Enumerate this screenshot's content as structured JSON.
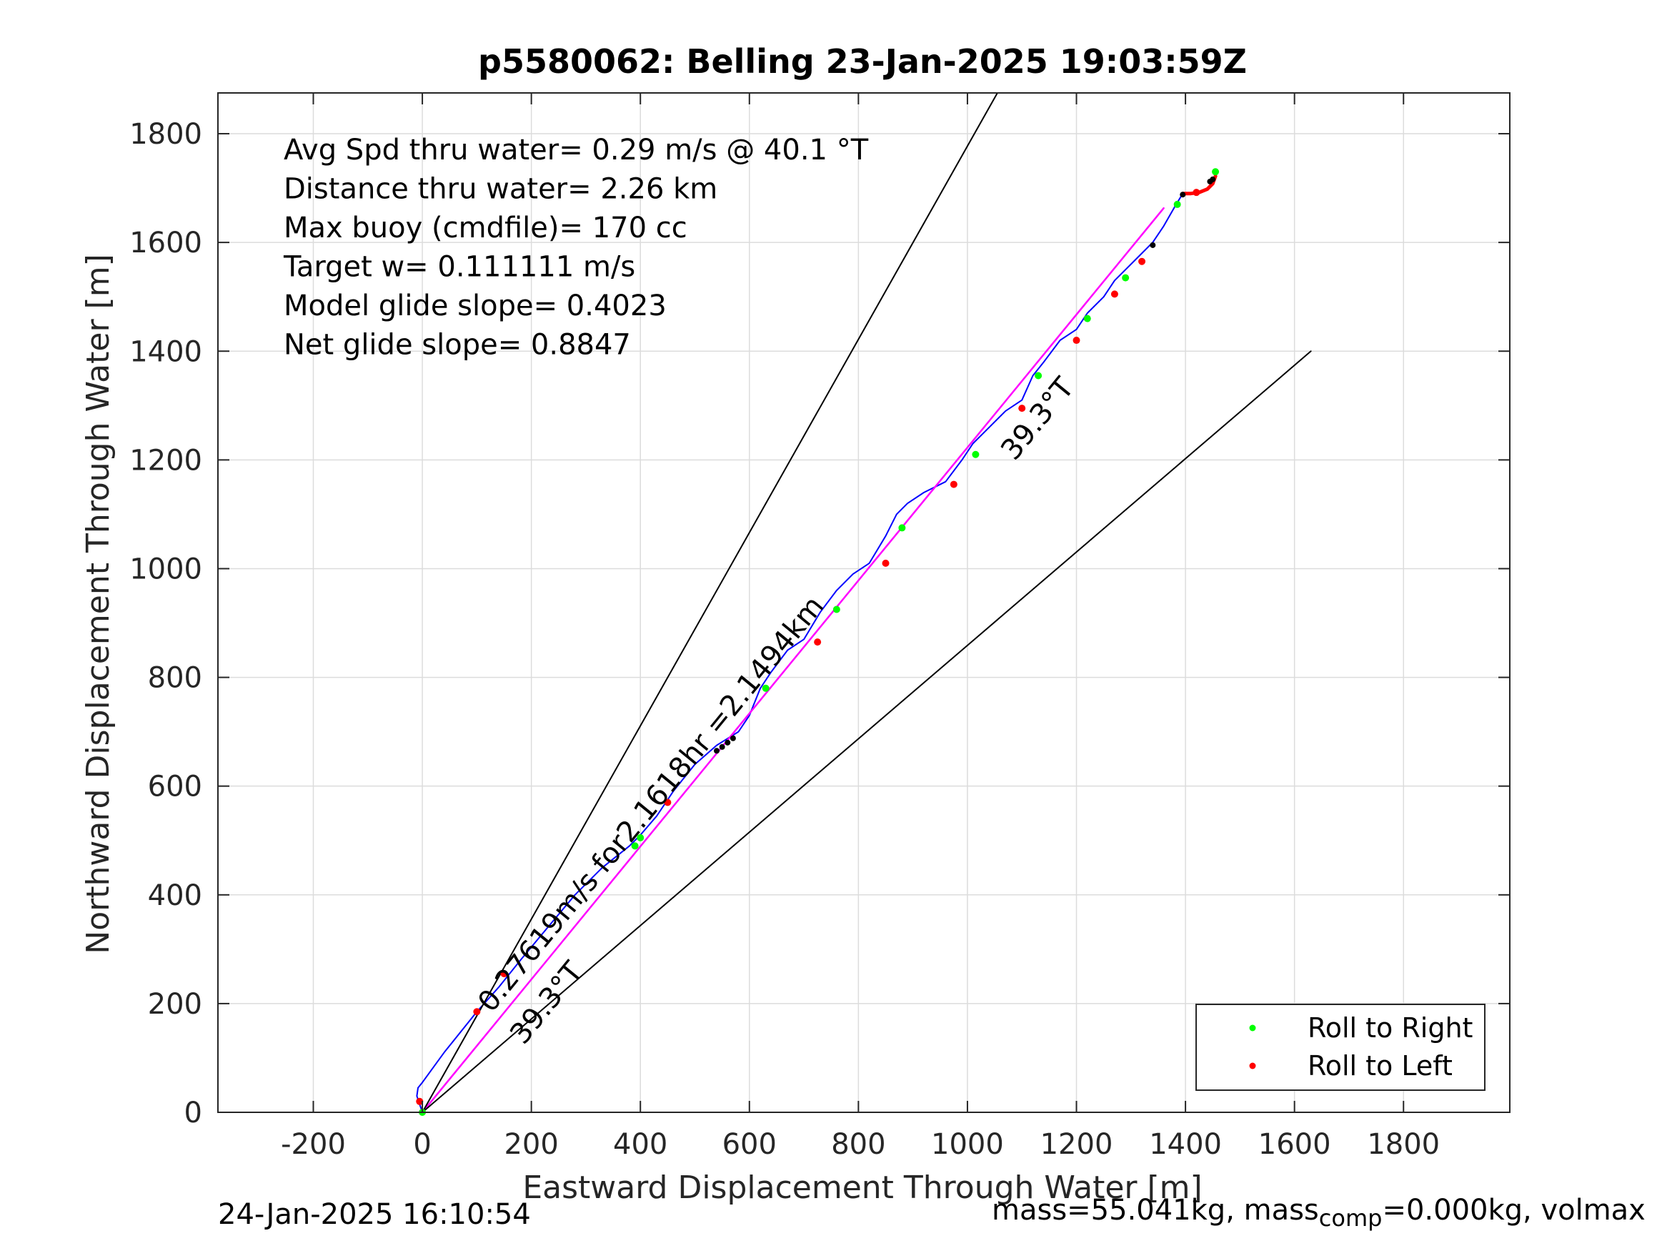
{
  "chart_data": {
    "type": "line",
    "title": "p5580062: Belling 23-Jan-2025 19:03:59Z",
    "xlabel": "Eastward Displacement Through Water [m]",
    "ylabel": "Northward Displacement Through Water [m]",
    "xlim": [
      -375,
      1995
    ],
    "ylim": [
      0,
      1875
    ],
    "xticks": [
      -200,
      0,
      200,
      400,
      600,
      800,
      1000,
      1200,
      1400,
      1600,
      1800
    ],
    "yticks": [
      0,
      200,
      400,
      600,
      800,
      1000,
      1200,
      1400,
      1600,
      1800
    ],
    "grid": true,
    "legend_position": "bottom-right",
    "annotations": [
      "Avg Spd thru water=  0.29 m/s @  40.1 °T",
      "Distance thru water=  2.26 km",
      "Max buoy (cmdfile)= 170 cc",
      "Target w= 0.111111 m/s",
      "Model glide slope= 0.4023",
      "Net glide slope= 0.8847"
    ],
    "rotated_labels": {
      "along_track": "0.27619m/s for2.1618hr =2.1494km",
      "heading_upper": "39.3°T",
      "heading_lower": "39.3°T"
    },
    "legend": [
      {
        "label": "Roll to Right",
        "color": "#00ff00"
      },
      {
        "label": "Roll to Left",
        "color": "#ff0000"
      }
    ],
    "colors": {
      "track": "#0000ff",
      "fit_line": "#ff00ff",
      "wedge": "#000000",
      "roll_right": "#00ff00",
      "roll_left": "#ff0000",
      "surface": "#000000"
    },
    "series": [
      {
        "name": "track",
        "x": [
          0,
          -5,
          -10,
          -8,
          0,
          40,
          100,
          140,
          180,
          230,
          280,
          330,
          380,
          400,
          430,
          460,
          500,
          540,
          580,
          600,
          620,
          640,
          670,
          700,
          730,
          760,
          790,
          820,
          850,
          870,
          890,
          920,
          960,
          990,
          1010,
          1040,
          1070,
          1100,
          1120,
          1140,
          1170,
          1200,
          1220,
          1250,
          1270,
          1290,
          1310,
          1340,
          1360,
          1380,
          1395
        ],
        "y": [
          0,
          15,
          30,
          45,
          55,
          110,
          185,
          230,
          280,
          340,
          400,
          450,
          490,
          510,
          545,
          590,
          640,
          675,
          700,
          730,
          780,
          810,
          850,
          870,
          920,
          960,
          990,
          1010,
          1060,
          1100,
          1120,
          1140,
          1160,
          1200,
          1230,
          1260,
          1290,
          1310,
          1355,
          1380,
          1420,
          1440,
          1470,
          1500,
          1530,
          1550,
          1570,
          1600,
          1630,
          1665,
          1690
        ]
      },
      {
        "name": "surface_end",
        "x": [
          1395,
          1410,
          1425,
          1440,
          1450,
          1455
        ],
        "y": [
          1690,
          1690,
          1692,
          1698,
          1708,
          1722
        ]
      },
      {
        "name": "fit_line",
        "x": [
          0,
          1360
        ],
        "y": [
          0,
          1663
        ]
      },
      {
        "name": "wedge_left",
        "x": [
          0,
          1055
        ],
        "y": [
          0,
          1875
        ]
      },
      {
        "name": "wedge_right",
        "x": [
          0,
          1630
        ],
        "y": [
          0,
          1400
        ]
      }
    ],
    "roll_right_points": {
      "x": [
        0,
        400,
        630,
        760,
        880,
        1015,
        1130,
        1220,
        1290,
        1385,
        1455,
        390
      ],
      "y": [
        0,
        505,
        780,
        925,
        1075,
        1210,
        1355,
        1460,
        1535,
        1670,
        1730,
        490
      ]
    },
    "roll_left_points": {
      "x": [
        -5,
        100,
        150,
        450,
        725,
        850,
        975,
        1100,
        1200,
        1270,
        1320,
        1420
      ],
      "y": [
        20,
        185,
        255,
        570,
        865,
        1010,
        1155,
        1295,
        1420,
        1505,
        1565,
        1692
      ]
    },
    "surface_points": {
      "x": [
        540,
        550,
        560,
        570,
        1340,
        1395,
        1445,
        1450
      ],
      "y": [
        665,
        672,
        680,
        688,
        1595,
        1688,
        1712,
        1716
      ]
    }
  },
  "footer": {
    "timestamp": "24-Jan-2025 16:10:54",
    "mass_prefix": "mass=55.041kg, mass",
    "mass_sub": "comp",
    "mass_suffix": "=0.000kg, volmax"
  }
}
